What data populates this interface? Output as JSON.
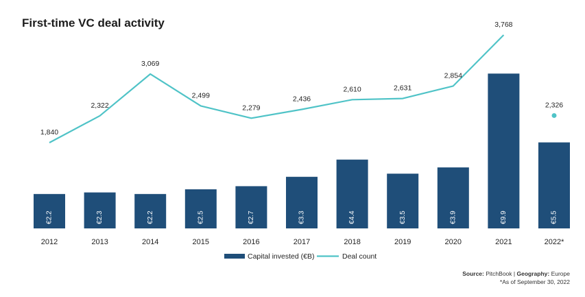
{
  "chart_data": {
    "type": "bar",
    "title": "First-time VC deal activity",
    "categories": [
      "2012",
      "2013",
      "2014",
      "2015",
      "2016",
      "2017",
      "2018",
      "2019",
      "2020",
      "2021",
      "2022*"
    ],
    "series": [
      {
        "name": "Capital invested (€B)",
        "type": "bar",
        "values": [
          2.2,
          2.3,
          2.2,
          2.5,
          2.7,
          3.3,
          4.4,
          3.5,
          3.9,
          9.9,
          5.5
        ],
        "labels": [
          "€2.2",
          "€2.3",
          "€2.2",
          "€2.5",
          "€2.7",
          "€3.3",
          "€4.4",
          "€3.5",
          "€3.9",
          "€9.9",
          "€5.5"
        ],
        "color": "#1f4e79"
      },
      {
        "name": "Deal count",
        "type": "line",
        "values": [
          1840,
          2322,
          3069,
          2499,
          2279,
          2436,
          2610,
          2631,
          2854,
          3768,
          2326
        ],
        "labels": [
          "1,840",
          "2,322",
          "3,069",
          "2,499",
          "2,279",
          "2,436",
          "2,610",
          "2,631",
          "2,854",
          "3,768",
          "2,326"
        ],
        "color": "#4fc3c7",
        "last_point_separate": true
      }
    ],
    "legend_position": "bottom-center",
    "grid": false
  },
  "source": {
    "source_label": "Source:",
    "source_value": "PitchBook",
    "separator": "|",
    "geo_label": "Geography:",
    "geo_value": "Europe",
    "footnote": "*As of September 30, 2022"
  }
}
